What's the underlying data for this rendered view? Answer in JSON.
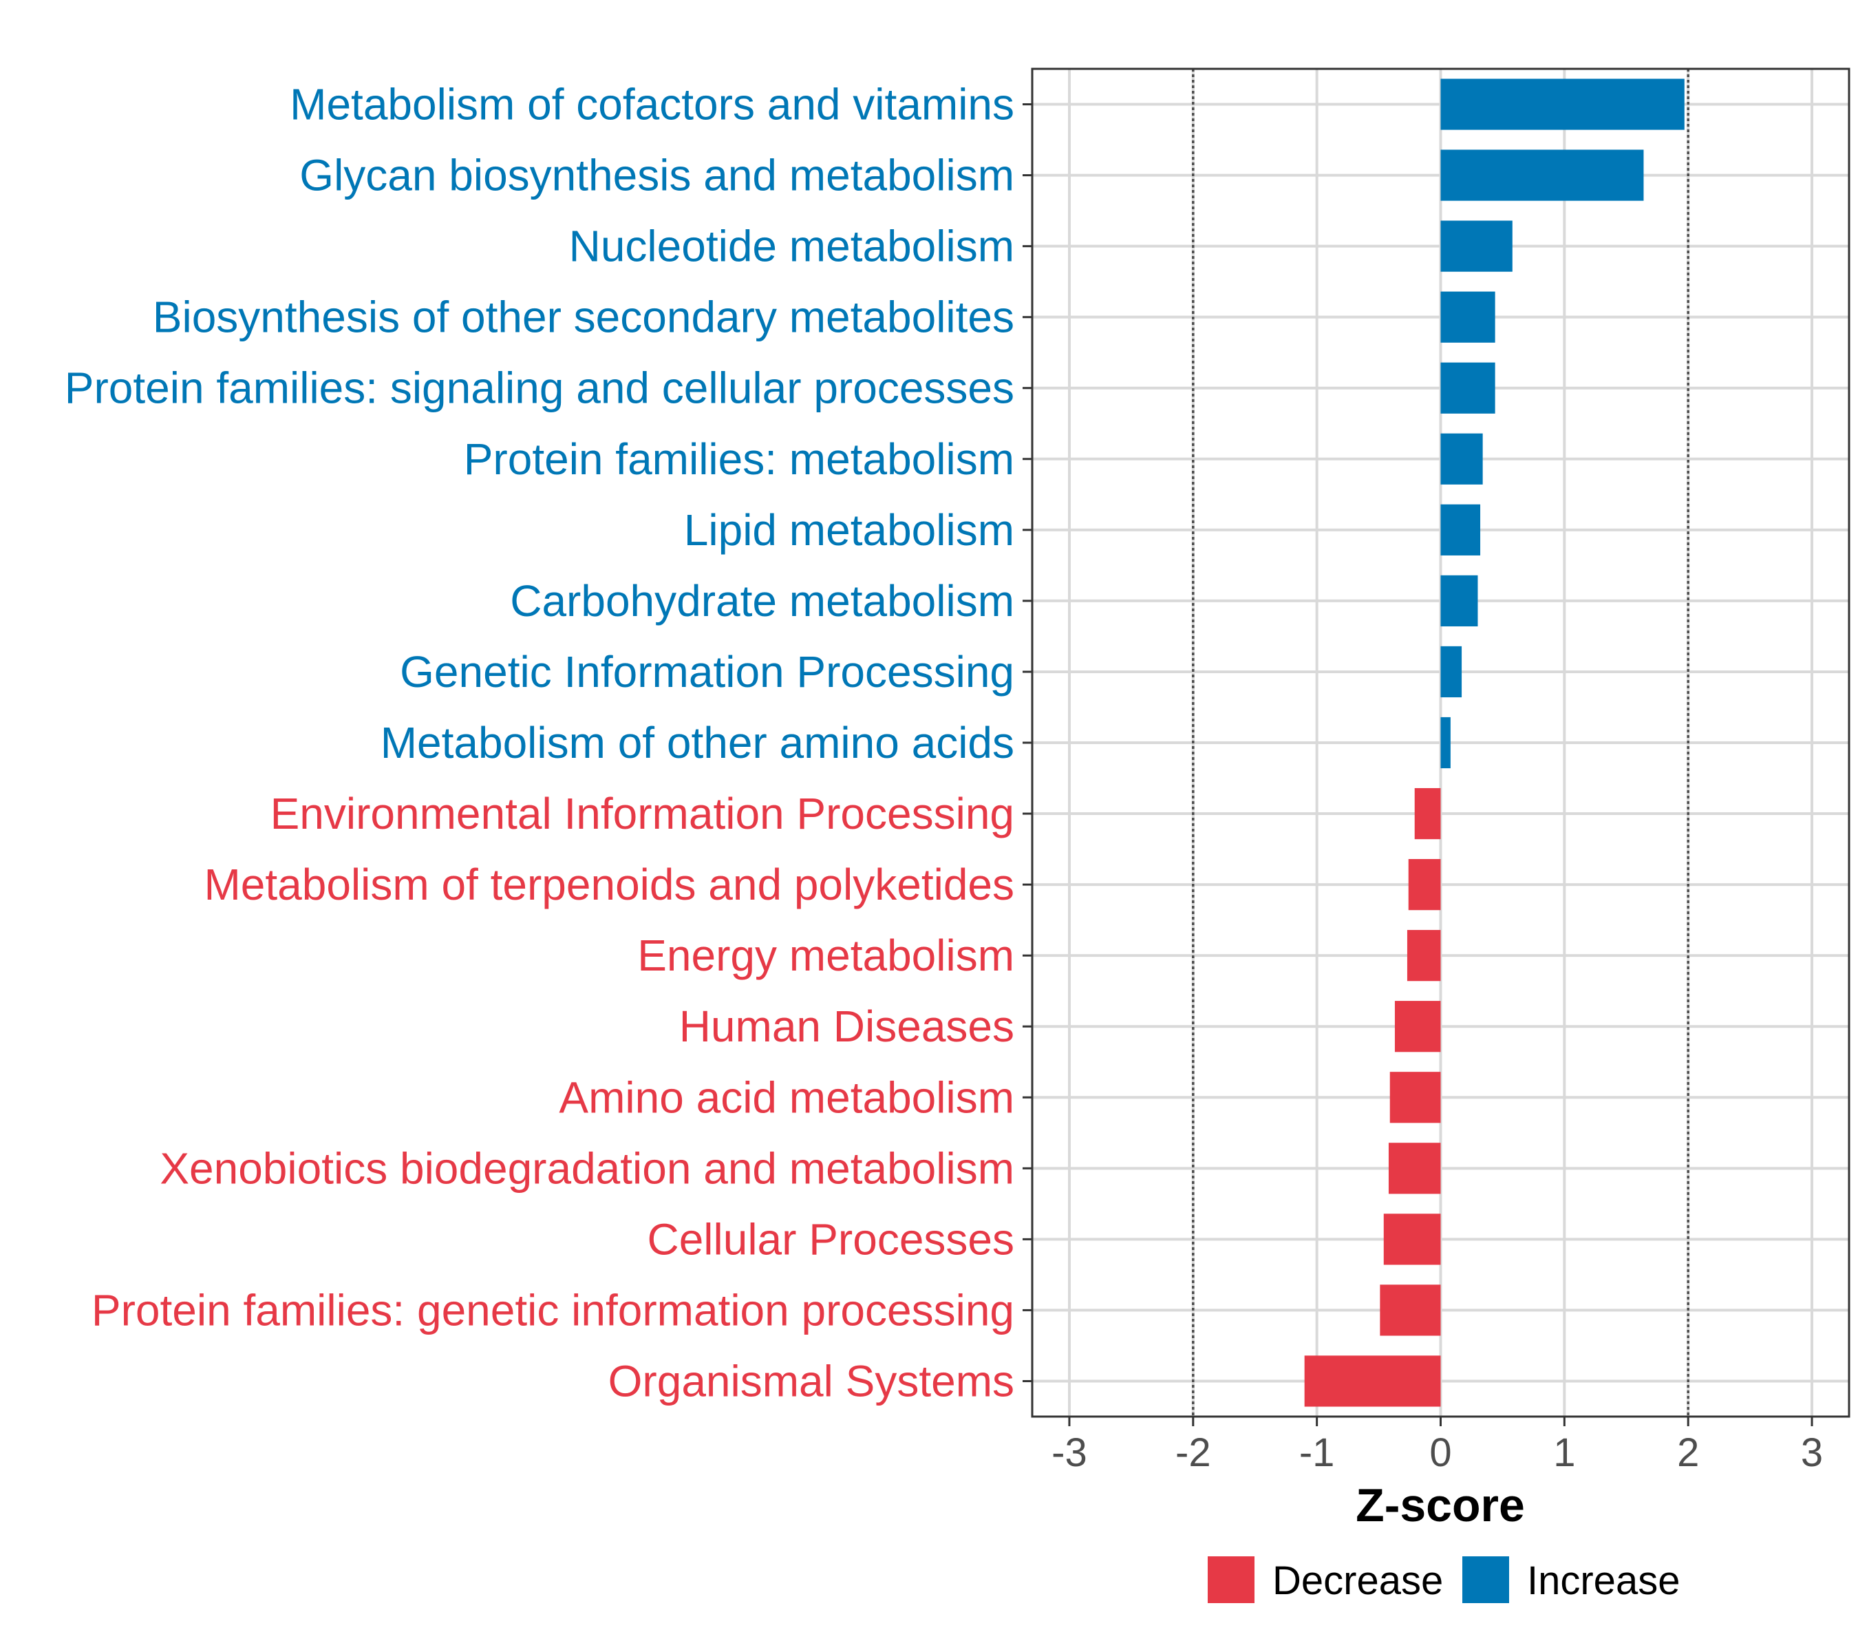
{
  "chart_data": {
    "type": "bar",
    "orientation": "horizontal",
    "xlabel": "Z-score",
    "ylabel": "",
    "xlim": [
      -3.3,
      3.3
    ],
    "x_ticks": [
      -3,
      -2,
      -1,
      0,
      1,
      2,
      3
    ],
    "x_tick_labels": [
      "-3",
      "-2",
      "-1",
      "0",
      "1",
      "2",
      "3"
    ],
    "reference_lines": [
      -2,
      2
    ],
    "grid": true,
    "categories": [
      "Metabolism of cofactors and vitamins",
      "Glycan biosynthesis and metabolism",
      "Nucleotide metabolism",
      "Biosynthesis of other secondary metabolites",
      "Protein families: signaling and cellular processes",
      "Protein families: metabolism",
      "Lipid metabolism",
      "Carbohydrate metabolism",
      "Genetic Information Processing",
      "Metabolism of other amino acids",
      "Environmental Information Processing",
      "Metabolism of terpenoids and polyketides",
      "Energy metabolism",
      "Human Diseases",
      "Amino acid metabolism",
      "Xenobiotics biodegradation and metabolism",
      "Cellular Processes",
      "Protein families: genetic information processing",
      "Organismal Systems"
    ],
    "values": [
      1.97,
      1.64,
      0.58,
      0.44,
      0.44,
      0.34,
      0.32,
      0.3,
      0.17,
      0.08,
      -0.21,
      -0.26,
      -0.27,
      -0.37,
      -0.41,
      -0.42,
      -0.46,
      -0.49,
      -1.1
    ],
    "groups": [
      "Increase",
      "Increase",
      "Increase",
      "Increase",
      "Increase",
      "Increase",
      "Increase",
      "Increase",
      "Increase",
      "Increase",
      "Decrease",
      "Decrease",
      "Decrease",
      "Decrease",
      "Decrease",
      "Decrease",
      "Decrease",
      "Decrease",
      "Decrease"
    ],
    "legend": {
      "position": "bottom",
      "entries": [
        {
          "label": "Decrease",
          "color": "#e63946"
        },
        {
          "label": "Increase",
          "color": "#0077b6"
        }
      ]
    },
    "colors": {
      "Decrease": "#e63946",
      "Increase": "#0077b6"
    }
  }
}
